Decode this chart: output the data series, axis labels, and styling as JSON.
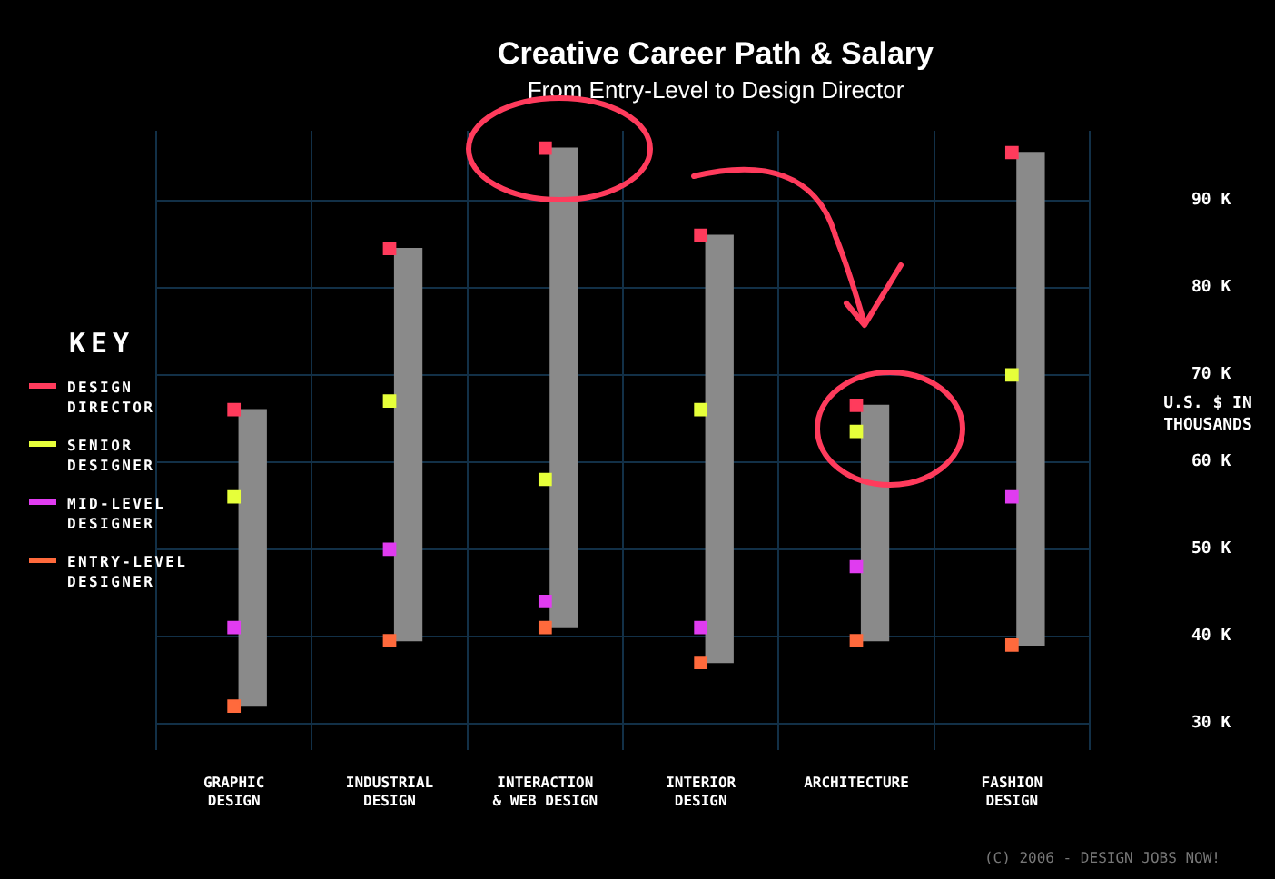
{
  "chart_data": {
    "type": "bar",
    "title": "Creative Career Path & Salary",
    "subtitle": "From Entry-Level to Design Director",
    "ylabel": "U.S. $ IN THOUSANDS",
    "legend_title": "KEY",
    "categories": [
      "GRAPHIC DESIGN",
      "INDUSTRIAL DESIGN",
      "INTERACTION & WEB DESIGN",
      "INTERIOR DESIGN",
      "ARCHITECTURE",
      "FASHION DESIGN"
    ],
    "series": [
      {
        "color": "#8a8a8a",
        "base": [
          32,
          39.5,
          41,
          37,
          39.5,
          39
        ],
        "values": [
          34,
          45,
          55,
          49,
          27,
          56.5
        ]
      },
      {
        "type": "scatter",
        "name": "DESIGN DIRECTOR",
        "color": "#ff3b5c",
        "x": [
          "GRAPHIC DESIGN",
          "INDUSTRIAL DESIGN",
          "INTERACTION & WEB DESIGN",
          "INTERIOR DESIGN",
          "ARCHITECTURE",
          "FASHION DESIGN"
        ],
        "values": [
          66,
          84.5,
          96,
          86,
          66.5,
          95.5
        ]
      },
      {
        "type": "scatter",
        "name": "SENIOR DESIGNER",
        "color": "#e6ff3a",
        "x": [
          "GRAPHIC DESIGN",
          "INDUSTRIAL DESIGN",
          "INTERACTION & WEB DESIGN",
          "INTERIOR DESIGN",
          "ARCHITECTURE",
          "FASHION DESIGN"
        ],
        "values": [
          56,
          67,
          58,
          66,
          63.5,
          70
        ]
      },
      {
        "type": "scatter",
        "name": "MID-LEVEL DESIGNER",
        "color": "#e03cf0",
        "x": [
          "GRAPHIC DESIGN",
          "INDUSTRIAL DESIGN",
          "INTERACTION & WEB DESIGN",
          "INTERIOR DESIGN",
          "ARCHITECTURE",
          "FASHION DESIGN"
        ],
        "values": [
          41,
          50,
          44,
          41,
          48,
          56
        ]
      },
      {
        "type": "scatter",
        "name": "ENTRY-LEVEL DESIGNER",
        "color": "#ff6a3c",
        "x": [
          "GRAPHIC DESIGN",
          "INDUSTRIAL DESIGN",
          "INTERACTION & WEB DESIGN",
          "INTERIOR DESIGN",
          "ARCHITECTURE",
          "FASHION DESIGN"
        ],
        "values": [
          32,
          39.5,
          41,
          37,
          39.5,
          39
        ]
      }
    ],
    "ylim": [
      27,
      98
    ],
    "yticks": [
      {
        "value": 30,
        "label": "30 K"
      },
      {
        "value": 40,
        "label": "40 K"
      },
      {
        "value": 50,
        "label": "50 K"
      },
      {
        "value": 60,
        "label": "60 K"
      },
      {
        "value": 70,
        "label": "70 K"
      },
      {
        "value": 80,
        "label": "80 K"
      },
      {
        "value": 90,
        "label": "90 K"
      }
    ],
    "grid": true,
    "legend": "left",
    "marker": "square",
    "annotations": [
      "(C) 2006 - DESIGN JOBS NOW!"
    ]
  }
}
